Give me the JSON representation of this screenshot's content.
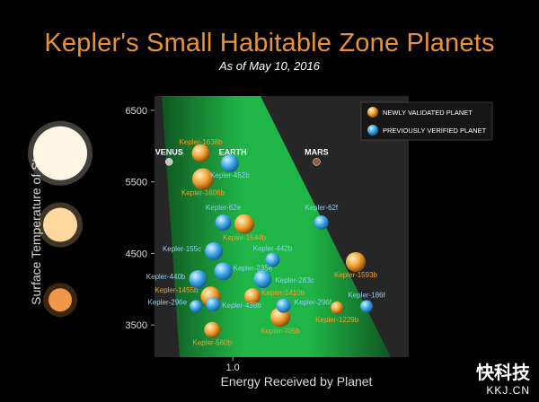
{
  "title": "Kepler's Small Habitable Zone Planets",
  "subtitle": "As of May 10, 2016",
  "watermark": {
    "main": "快科技",
    "sub": "KKJ.CN"
  },
  "chart_data": {
    "type": "scatter",
    "title": "Kepler's Small Habitable Zone Planets",
    "subtitle": "As of May 10, 2016",
    "xlabel": "Energy Received by Planet",
    "ylabel": "Surface Temperature of Star",
    "x_scale": "log",
    "xlim": [
      2.2,
      0.17
    ],
    "ylim": [
      3050,
      6700
    ],
    "x_ticks": [
      {
        "value": 1.0,
        "label": "1.0"
      }
    ],
    "y_ticks": [
      3500,
      4500,
      5500,
      6500
    ],
    "grid": false,
    "legend_position": "top-right",
    "colors": {
      "newly": "#f0a030",
      "previous": "#3aa8e8",
      "zone": "#1fc24a",
      "plot_bg": "#262626"
    },
    "legend": [
      {
        "key": "newly",
        "label": "NEWLY VALIDATED PLANET"
      },
      {
        "key": "previous",
        "label": "PREVIOUSLY VERIFIED PLANET"
      }
    ],
    "series": [
      {
        "name": "NEWLY VALIDATED PLANET",
        "key": "newly",
        "points": [
          {
            "label": "Kepler-1638b",
            "x": 1.38,
            "y": 5900,
            "size": 10
          },
          {
            "label": "Kepler-1606b",
            "x": 1.35,
            "y": 5540,
            "size": 12
          },
          {
            "label": "Kepler-1544b",
            "x": 0.89,
            "y": 4910,
            "size": 11
          },
          {
            "label": "Kepler-1593b",
            "x": 0.29,
            "y": 4380,
            "size": 11
          },
          {
            "label": "Kepler-1455b",
            "x": 1.25,
            "y": 3900,
            "size": 11
          },
          {
            "label": "Kepler-1410b",
            "x": 0.82,
            "y": 3900,
            "size": 9
          },
          {
            "label": "Kepler-705b",
            "x": 0.62,
            "y": 3610,
            "size": 11
          },
          {
            "label": "Kepler-1229b",
            "x": 0.35,
            "y": 3740,
            "size": 7
          },
          {
            "label": "Kepler-560b",
            "x": 1.23,
            "y": 3430,
            "size": 9
          }
        ]
      },
      {
        "name": "PREVIOUSLY VERIFIED PLANET",
        "key": "previous",
        "points": [
          {
            "label": "Kepler-452b",
            "x": 1.03,
            "y": 5760,
            "size": 10
          },
          {
            "label": "Kepler-62e",
            "x": 1.1,
            "y": 4930,
            "size": 9
          },
          {
            "label": "Kepler-62f",
            "x": 0.41,
            "y": 4930,
            "size": 8
          },
          {
            "label": "Kepler-155c",
            "x": 1.21,
            "y": 4530,
            "size": 10
          },
          {
            "label": "Kepler-442b",
            "x": 0.67,
            "y": 4410,
            "size": 8
          },
          {
            "label": "Kepler-235e",
            "x": 1.1,
            "y": 4250,
            "size": 10
          },
          {
            "label": "Kepler-440b",
            "x": 1.42,
            "y": 4140,
            "size": 10
          },
          {
            "label": "Kepler-283c",
            "x": 0.74,
            "y": 4140,
            "size": 10
          },
          {
            "label": "Kepler-296e",
            "x": 1.45,
            "y": 3760,
            "size": 7
          },
          {
            "label": "Kepler-438b",
            "x": 1.22,
            "y": 3790,
            "size": 8
          },
          {
            "label": "Kepler-296f",
            "x": 0.6,
            "y": 3770,
            "size": 8
          },
          {
            "label": "Kepler-186f",
            "x": 0.26,
            "y": 3760,
            "size": 7
          }
        ]
      }
    ],
    "solar_system": [
      {
        "label": "VENUS",
        "x": 1.9,
        "y": 5780,
        "color": "#c9c4bc"
      },
      {
        "label": "EARTH",
        "x": 1.0,
        "y": 5780,
        "color": "#4a78c0"
      },
      {
        "label": "MARS",
        "x": 0.43,
        "y": 5780,
        "color": "#9a5a3a"
      }
    ],
    "stars": [
      {
        "name": "g-star-icon",
        "y": 5900,
        "color": "#fff6e6"
      },
      {
        "name": "k-star-icon",
        "y": 4900,
        "color": "#ffd8a0"
      },
      {
        "name": "m-star-icon",
        "y": 3850,
        "color": "#f09848"
      }
    ]
  }
}
